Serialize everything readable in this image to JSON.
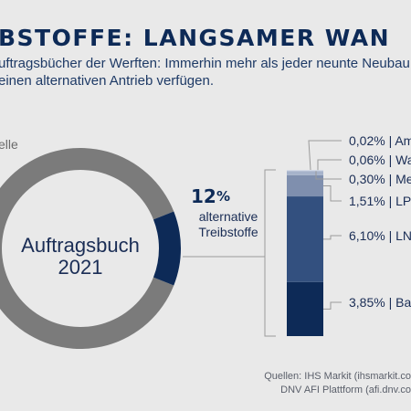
{
  "header": {
    "title": "BSTOFFE: LANGSAMER WAN",
    "subtitle_line1": "uftragsbücher der Werften: Immerhin mehr als jeder neunte Neubau",
    "subtitle_line2": "einen alternativen Antrieb verfügen."
  },
  "donut": {
    "center_line1": "Auftragsbuch",
    "center_line2": "2021",
    "left_label_line1": "elle",
    "left_label_line2": "",
    "callout_value": "12",
    "callout_unit": "%",
    "callout_line1": "alternative",
    "callout_line2": "Treibstoffe"
  },
  "colors": {
    "conventional": "#7b7b7b",
    "alternative": "#0d2a57",
    "bar_dark": "#0d2a57",
    "bar_mid": "#33507f",
    "bar_light": "#7f8fae",
    "bar_lighter": "#a6b3cb",
    "bar_lightest": "#c9d1e0"
  },
  "chart_data": [
    {
      "type": "pie",
      "title": "",
      "categories": [
        "",
        "alternative Treibstoffe"
      ],
      "values": [
        88,
        12
      ]
    },
    {
      "type": "bar",
      "stacked": true,
      "categories": [
        "Ba",
        "LN",
        "LP",
        "Me",
        "Wa",
        "Am"
      ],
      "values": [
        3.85,
        6.1,
        1.51,
        0.3,
        0.06,
        0.02
      ],
      "labels": [
        "3,85% | Ba",
        "6,10% | LN",
        "1,51% | LP",
        "0,30% | Me",
        "0,06% | Wa",
        "0,02% | Am"
      ]
    }
  ],
  "source": {
    "line1": "Quellen: IHS Markit (ihsmarkit.co",
    "line2": "DNV AFI Plattform (afi.dnv.co"
  }
}
